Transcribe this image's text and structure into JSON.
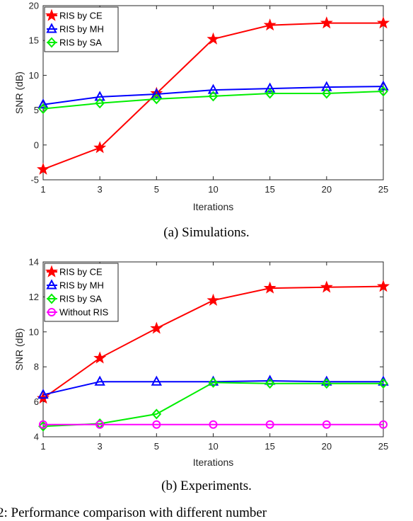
{
  "captions": {
    "a": "(a)  Simulations.",
    "b": "(b)  Experiments."
  },
  "footer_text": "2:  Performance  comparison  with  different  number",
  "colors": {
    "ce": "#ff0000",
    "mh": "#0000ff",
    "sa": "#00ee00",
    "none": "#ff00ff"
  },
  "chart_data": [
    {
      "type": "line",
      "xlabel": "Iterations",
      "ylabel": "SNR (dB)",
      "categories": [
        "1",
        "3",
        "5",
        "10",
        "15",
        "20",
        "25"
      ],
      "ylim": [
        -5,
        20
      ],
      "yticks": [
        -5,
        0,
        5,
        10,
        15,
        20
      ],
      "legend_position": "top-left",
      "series": [
        {
          "name": "RIS by CE",
          "color": "#ff0000",
          "marker": "star",
          "values": [
            -3.5,
            -0.4,
            7.4,
            15.2,
            17.2,
            17.5,
            17.5
          ]
        },
        {
          "name": "RIS by MH",
          "color": "#0000ff",
          "marker": "triangle",
          "values": [
            5.8,
            6.9,
            7.3,
            7.9,
            8.1,
            8.3,
            8.4
          ]
        },
        {
          "name": "RIS by SA",
          "color": "#00ee00",
          "marker": "diamond",
          "values": [
            5.2,
            6.0,
            6.6,
            7.0,
            7.4,
            7.4,
            7.7
          ]
        }
      ]
    },
    {
      "type": "line",
      "xlabel": "Iterations",
      "ylabel": "SNR (dB)",
      "categories": [
        "1",
        "3",
        "5",
        "10",
        "15",
        "20",
        "25"
      ],
      "ylim": [
        4,
        14
      ],
      "yticks": [
        4,
        6,
        8,
        10,
        12,
        14
      ],
      "legend_position": "top-left",
      "series": [
        {
          "name": "RIS by CE",
          "color": "#ff0000",
          "marker": "star",
          "values": [
            6.2,
            8.5,
            10.2,
            11.8,
            12.5,
            12.55,
            12.6
          ]
        },
        {
          "name": "RIS by MH",
          "color": "#0000ff",
          "marker": "triangle",
          "values": [
            6.4,
            7.15,
            7.15,
            7.15,
            7.2,
            7.15,
            7.15
          ]
        },
        {
          "name": "RIS by SA",
          "color": "#00ee00",
          "marker": "diamond",
          "values": [
            4.6,
            4.75,
            5.3,
            7.1,
            7.05,
            7.05,
            7.05
          ]
        },
        {
          "name": "Without RIS",
          "color": "#ff00ff",
          "marker": "circle",
          "values": [
            4.7,
            4.7,
            4.7,
            4.7,
            4.7,
            4.7,
            4.7
          ]
        }
      ]
    }
  ]
}
